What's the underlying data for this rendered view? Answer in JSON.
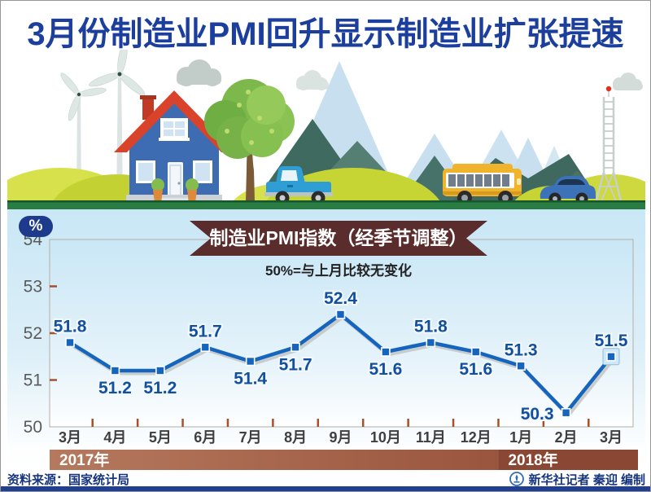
{
  "title": "3月份制造业PMI回升显示制造业扩张提速",
  "chart_data": {
    "type": "line",
    "title": "制造业PMI指数（经季节调整）",
    "subtitle": "50%=与上月比较无变化",
    "unit_label": "%",
    "categories": [
      "3月",
      "4月",
      "5月",
      "6月",
      "7月",
      "8月",
      "9月",
      "10月",
      "11月",
      "12月",
      "1月",
      "2月",
      "3月"
    ],
    "values": [
      51.8,
      51.2,
      51.2,
      51.7,
      51.4,
      51.7,
      52.4,
      51.6,
      51.8,
      51.6,
      51.3,
      50.3,
      51.5
    ],
    "label_positions": [
      "above",
      "below",
      "below",
      "above",
      "below",
      "below",
      "above",
      "below",
      "above",
      "below",
      "above",
      "left",
      "above"
    ],
    "ylim": [
      50,
      54
    ],
    "yticks": [
      50,
      51,
      52,
      53,
      54
    ],
    "ytick_marks": [
      51,
      52,
      53
    ],
    "year_bands": [
      {
        "label": "2017年",
        "start_index": 0,
        "end_index": 9
      },
      {
        "label": "2018年",
        "start_index": 10,
        "end_index": 12
      }
    ],
    "highlight_last_point": true,
    "grid": false,
    "legend": false
  },
  "colors": {
    "title_text": "#1c3f9e",
    "line": "#1565bf",
    "line_shadow": "#c2c6c3",
    "marker_fill": "#1565bf",
    "marker_highlight": "#cfe7f7",
    "data_label": "#124f9e",
    "axis_label": "#5a5a5a",
    "month_label": "#3f3f3f",
    "tick_mark": "#a5512e",
    "plot_border": "#b5aea6",
    "ribbon_bg": "#5a2c2c",
    "band_2017_left": "#b5795e",
    "band_2017_right": "#9a553e",
    "band_2018": "#8a4734",
    "band_text": "#ffffff",
    "panel_top": "#c9e7f6",
    "footer_text": "#17357f",
    "bottom_bar": "#203f90"
  },
  "footer": {
    "source": "资料来源：国家统计局",
    "credit": "新华社记者 秦迎 编制"
  }
}
